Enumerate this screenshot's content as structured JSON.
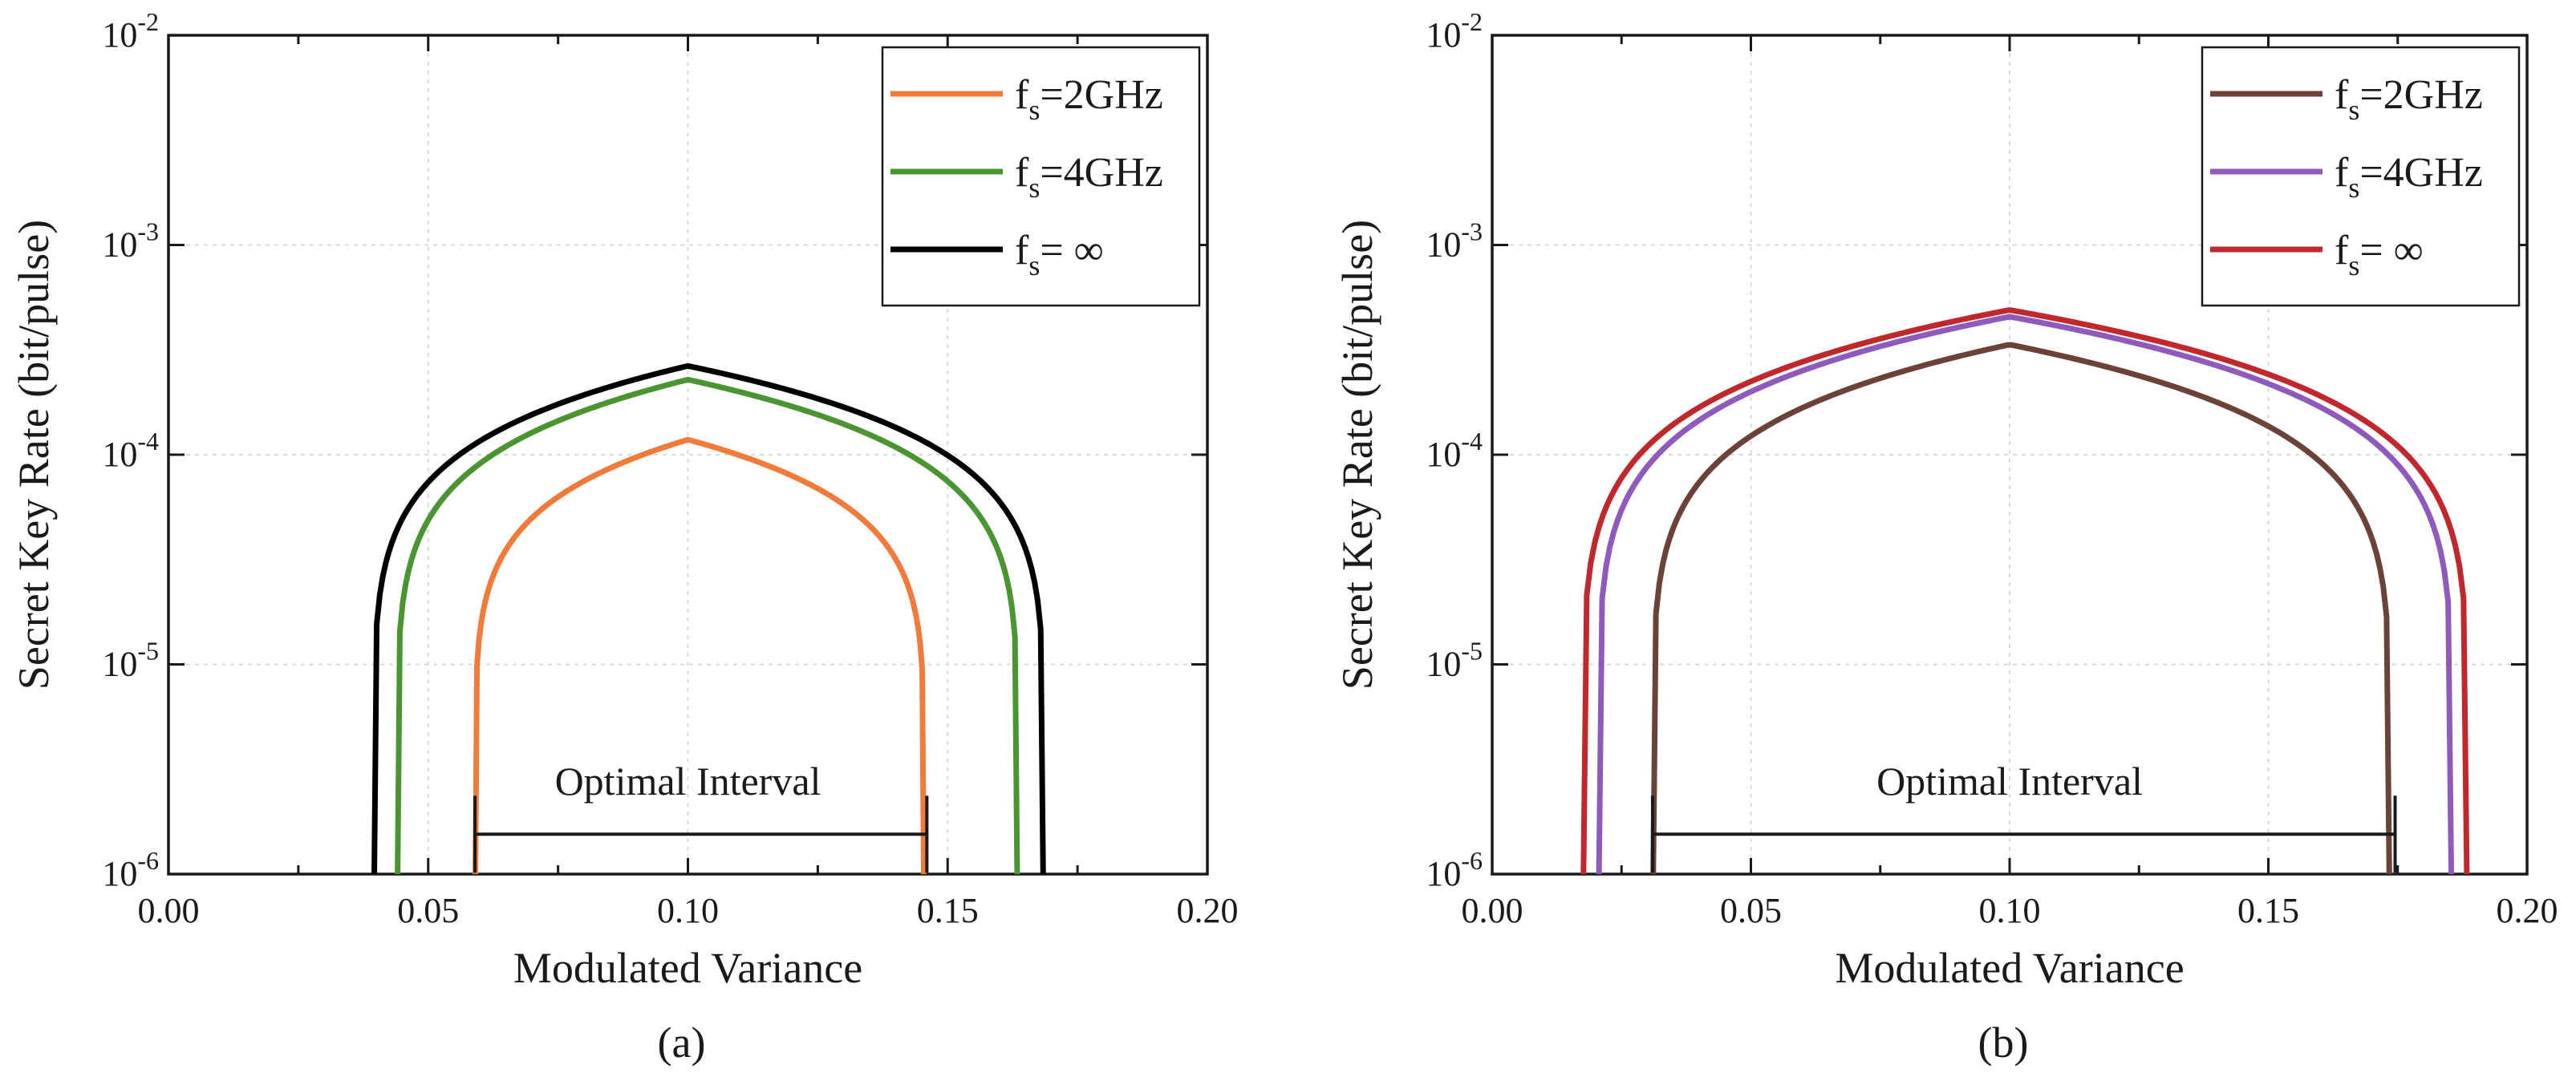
{
  "chart_data": [
    {
      "type": "line",
      "panel_label": "(a)",
      "xlabel": "Modulated Variance",
      "ylabel": "Secret Key Rate (bit/pulse)",
      "xlim": [
        0,
        0.2
      ],
      "ylim": [
        1e-06,
        0.01
      ],
      "yscale": "log",
      "grid": true,
      "legend_position": "top-right",
      "x_ticks": [
        "0.00",
        "0.05",
        "0.10",
        "0.15",
        "0.20"
      ],
      "y_ticks": [
        {
          "base": "10",
          "exp": "-6"
        },
        {
          "base": "10",
          "exp": "-5"
        },
        {
          "base": "10",
          "exp": "-4"
        },
        {
          "base": "10",
          "exp": "-3"
        },
        {
          "base": "10",
          "exp": "-2"
        }
      ],
      "series": [
        {
          "name": "fs=2GHz",
          "legend_main": "f",
          "legend_sub": "s",
          "legend_rest": "=2GHz",
          "color": "#f07b3a",
          "xmin": 0.059,
          "xmax": 0.1455,
          "peak_x": 0.1,
          "peak_y": 0.000118
        },
        {
          "name": "fs=4GHz",
          "legend_main": "f",
          "legend_sub": "s",
          "legend_rest": "=4GHz",
          "color": "#4a9532",
          "xmin": 0.044,
          "xmax": 0.1635,
          "peak_x": 0.1,
          "peak_y": 0.000228
        },
        {
          "name": "fs=∞",
          "legend_main": "f",
          "legend_sub": "s",
          "legend_rest": "=   ∞",
          "color": "#000000",
          "xmin": 0.0395,
          "xmax": 0.1685,
          "peak_x": 0.1,
          "peak_y": 0.000265
        }
      ],
      "annotation": {
        "text": "Optimal Interval",
        "x0": 0.059,
        "x1": 0.146,
        "y": 1.55e-06
      }
    },
    {
      "type": "line",
      "panel_label": "(b)",
      "xlabel": "Modulated Variance",
      "ylabel": "Secret Key Rate (bit/pulse)",
      "xlim": [
        0,
        0.2
      ],
      "ylim": [
        1e-06,
        0.01
      ],
      "yscale": "log",
      "grid": true,
      "legend_position": "top-right",
      "x_ticks": [
        "0.00",
        "0.05",
        "0.10",
        "0.15",
        "0.20"
      ],
      "y_ticks": [
        {
          "base": "10",
          "exp": "-6"
        },
        {
          "base": "10",
          "exp": "-5"
        },
        {
          "base": "10",
          "exp": "-4"
        },
        {
          "base": "10",
          "exp": "-3"
        },
        {
          "base": "10",
          "exp": "-2"
        }
      ],
      "series": [
        {
          "name": "fs=2GHz",
          "legend_main": "f",
          "legend_sub": "s",
          "legend_rest": "=2GHz",
          "color": "#6b4238",
          "xmin": 0.031,
          "xmax": 0.1735,
          "peak_x": 0.1,
          "peak_y": 0.000335
        },
        {
          "name": "fs=4GHz",
          "legend_main": "f",
          "legend_sub": "s",
          "legend_rest": "=4GHz",
          "color": "#8e5bbd",
          "xmin": 0.0205,
          "xmax": 0.1855,
          "peak_x": 0.1,
          "peak_y": 0.000455
        },
        {
          "name": "fs=∞",
          "legend_main": "f",
          "legend_sub": "s",
          "legend_rest": "=   ∞",
          "color": "#c0282d",
          "xmin": 0.0175,
          "xmax": 0.1885,
          "peak_x": 0.1,
          "peak_y": 0.00049
        }
      ],
      "annotation": {
        "text": "Optimal Interval",
        "x0": 0.031,
        "x1": 0.1745,
        "y": 1.55e-06
      }
    }
  ]
}
